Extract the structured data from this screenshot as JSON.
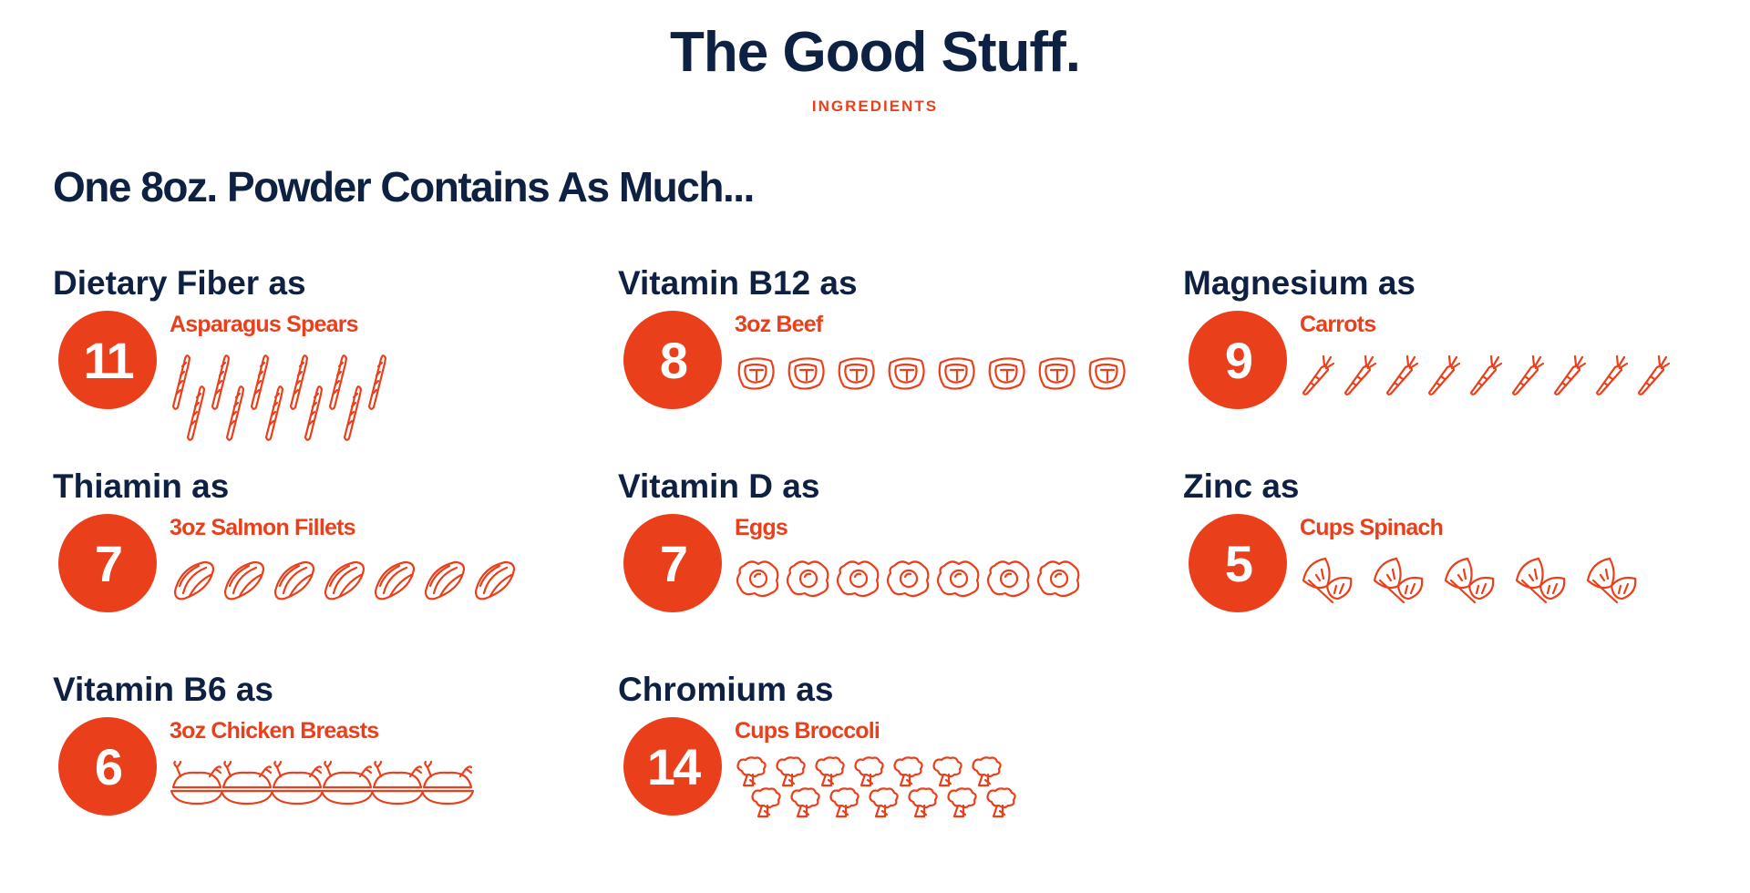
{
  "header": {
    "title": "The Good Stuff.",
    "eyebrow": "INGREDIENTS"
  },
  "section": {
    "heading": "One 8oz. Powder Contains As Much..."
  },
  "colors": {
    "accent": "#ea3f1b",
    "navy": "#0f2143",
    "background": "#ffffff"
  },
  "nutrients": [
    {
      "label": "Dietary Fiber as",
      "count": "11",
      "food": "Asparagus Spears",
      "icon": "asparagus-icon",
      "icon_count": 11
    },
    {
      "label": "Vitamin B12 as",
      "count": "8",
      "food": "3oz Beef",
      "icon": "steak-icon",
      "icon_count": 8
    },
    {
      "label": "Magnesium as",
      "count": "9",
      "food": "Carrots",
      "icon": "carrot-icon",
      "icon_count": 9
    },
    {
      "label": "Thiamin as",
      "count": "7",
      "food": "3oz Salmon Fillets",
      "icon": "salmon-fillet-icon",
      "icon_count": 7
    },
    {
      "label": "Vitamin D as",
      "count": "7",
      "food": "Eggs",
      "icon": "fried-egg-icon",
      "icon_count": 7
    },
    {
      "label": "Zinc as",
      "count": "5",
      "food": "Cups Spinach",
      "icon": "spinach-leaf-icon",
      "icon_count": 5
    },
    {
      "label": "Vitamin B6 as",
      "count": "6",
      "food": "3oz Chicken Breasts",
      "icon": "roast-chicken-icon",
      "icon_count": 6
    },
    {
      "label": "Chromium as",
      "count": "14",
      "food": "Cups Broccoli",
      "icon": "broccoli-icon",
      "icon_count": 14
    }
  ]
}
